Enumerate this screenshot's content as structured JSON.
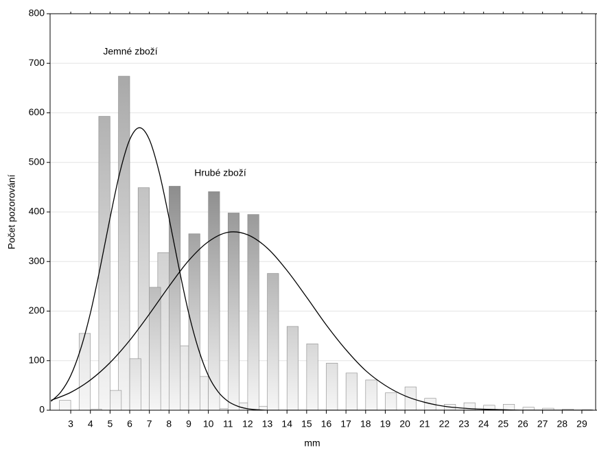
{
  "chart_data": {
    "type": "bar",
    "xlabel": "mm",
    "ylabel": "Počet pozorování",
    "x": [
      3,
      4,
      5,
      6,
      7,
      8,
      9,
      10,
      11,
      12,
      13,
      14,
      15,
      16,
      17,
      18,
      19,
      20,
      21,
      22,
      23,
      24,
      25,
      26,
      27,
      28,
      29
    ],
    "xlim": [
      1.95,
      29.7
    ],
    "xticks": [
      3,
      4,
      5,
      6,
      7,
      8,
      9,
      10,
      11,
      12,
      13,
      14,
      15,
      16,
      17,
      18,
      19,
      20,
      21,
      22,
      23,
      24,
      25,
      26,
      27,
      28,
      29
    ],
    "ylim": [
      0,
      800
    ],
    "yticks": [
      0,
      100,
      200,
      300,
      400,
      500,
      600,
      700,
      800
    ],
    "grid": true,
    "series": [
      {
        "name": "Jemné zboží",
        "color": "#9a9a9a",
        "values": [
          20,
          155,
          593,
          674,
          449,
          318,
          130,
          68,
          3,
          15,
          8,
          0,
          0,
          0,
          0,
          0,
          0,
          0,
          0,
          0,
          0,
          0,
          0,
          0,
          0,
          0,
          0
        ]
      },
      {
        "name": "Hrubé zboží",
        "color": "#3c3c3c",
        "values": [
          0,
          2,
          40,
          104,
          248,
          452,
          356,
          441,
          398,
          395,
          276,
          169,
          134,
          95,
          75,
          61,
          35,
          47,
          24,
          12,
          15,
          10,
          12,
          6,
          4,
          2,
          1
        ]
      }
    ],
    "fits": [
      {
        "color": "#000000",
        "x": [
          2,
          2.5,
          3,
          3.5,
          4,
          4.5,
          5,
          5.5,
          6,
          6.5,
          7,
          7.5,
          8,
          8.5,
          9,
          9.5,
          10,
          10.5,
          11,
          11.5,
          12,
          12.5,
          13,
          14,
          29.5
        ],
        "values": [
          18,
          37,
          70,
          123,
          196,
          288,
          388,
          480,
          546,
          570,
          546,
          480,
          388,
          288,
          196,
          123,
          70,
          37,
          18,
          8,
          3,
          1,
          0,
          0,
          0
        ]
      },
      {
        "color": "#000000",
        "x": [
          2,
          3,
          4,
          5,
          6,
          7,
          8,
          9,
          10,
          11,
          12,
          13,
          14,
          15,
          16,
          17,
          18,
          19,
          20,
          21,
          22,
          23,
          24,
          25,
          26,
          29.5
        ],
        "values": [
          20,
          36,
          61,
          96,
          141,
          194,
          250,
          302,
          340,
          359,
          354,
          327,
          282,
          228,
          172,
          122,
          80,
          50,
          29,
          16,
          8,
          4,
          2,
          1,
          0,
          0
        ]
      }
    ]
  }
}
